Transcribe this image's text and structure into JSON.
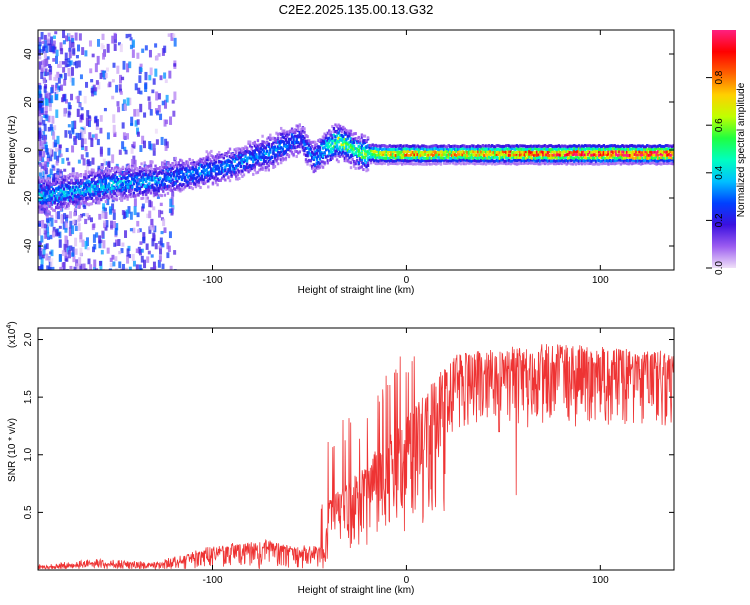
{
  "title": "C2E2.2025.135.00.13.G32",
  "chart_data": [
    {
      "type": "heatmap",
      "title": "C2E2.2025.135.00.13.G32",
      "xlabel": "Height of straight line (km)",
      "ylabel": "Frequency (Hz)",
      "xlim": [
        -190,
        138
      ],
      "ylim": [
        -50,
        50
      ],
      "xticks": [
        "-100",
        "0",
        "100"
      ],
      "yticks": [
        "-40",
        "-20",
        "0",
        "20",
        "40"
      ],
      "colorbar": {
        "label": "Normalized spectral amplitude",
        "range": [
          0,
          1
        ],
        "ticks": [
          "0.0",
          "0.2",
          "0.4",
          "0.6",
          "0.8"
        ],
        "colormap": [
          "#f0e0f8",
          "#9b5cf0",
          "#3a10e0",
          "#0040ff",
          "#00c0ff",
          "#00ffc0",
          "#20ff40",
          "#c0ff00",
          "#ffd000",
          "#ff6000",
          "#ff0000",
          "#ff2080"
        ]
      },
      "ridge": {
        "x": [
          -185,
          -170,
          -150,
          -130,
          -110,
          -90,
          -70,
          -55,
          -48,
          -42,
          -35,
          -25,
          -15,
          0,
          20,
          50,
          80,
          100,
          120,
          138
        ],
        "y": [
          -18,
          -16,
          -13,
          -12,
          -9,
          -5,
          0,
          6,
          -3,
          2,
          4,
          0,
          -1,
          -1,
          -1,
          -1,
          -1,
          -1,
          -1,
          -1
        ],
        "amplitude": [
          0.35,
          0.35,
          0.35,
          0.32,
          0.3,
          0.3,
          0.33,
          0.25,
          0.3,
          0.4,
          0.55,
          0.5,
          0.65,
          0.75,
          0.7,
          0.8,
          0.85,
          0.9,
          0.92,
          0.9
        ]
      }
    },
    {
      "type": "line",
      "xlabel": "Height of straight line (km)",
      "ylabel": "SNR (10 * v/v)",
      "multiplier": "(x10",
      "multiplier_exp": "4",
      "multiplier_close": ")",
      "xlim": [
        -190,
        138
      ],
      "ylim": [
        0,
        2.1
      ],
      "xticks": [
        "-100",
        "0",
        "100"
      ],
      "yticks": [
        "0.5",
        "1.0",
        "1.5",
        "2.0"
      ],
      "color": "#ee3333",
      "envelope": {
        "x": [
          -190,
          -160,
          -130,
          -100,
          -70,
          -60,
          -42,
          -40,
          -30,
          -20,
          -10,
          0,
          10,
          20,
          25,
          40,
          60,
          80,
          100,
          120,
          138
        ],
        "y": [
          0.03,
          0.08,
          0.05,
          0.2,
          0.25,
          0.2,
          0.2,
          0.6,
          0.75,
          0.9,
          1.2,
          1.3,
          1.55,
          1.75,
          1.85,
          1.9,
          1.93,
          1.95,
          1.92,
          1.9,
          1.88
        ]
      },
      "dips": [
        [
          -14,
          0.6
        ],
        [
          57,
          0.65
        ],
        [
          62,
          0.8
        ],
        [
          103,
          1.3
        ],
        [
          125,
          1.45
        ],
        [
          48,
          1.2
        ]
      ]
    }
  ]
}
